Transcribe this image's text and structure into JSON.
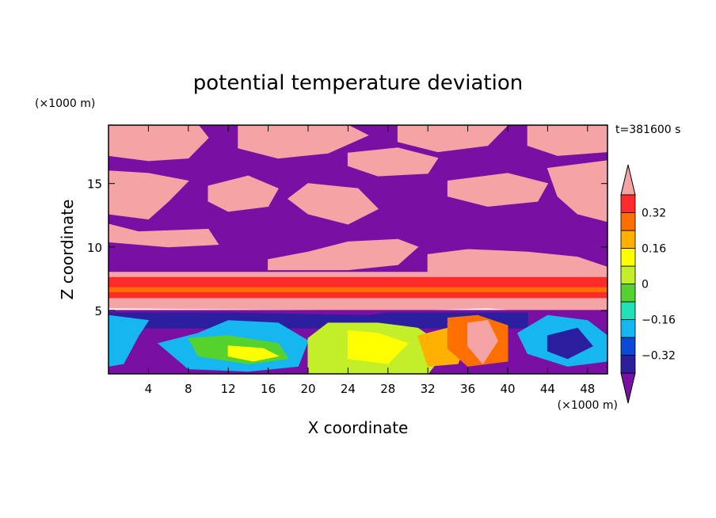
{
  "chart_data": {
    "type": "heatmap",
    "title": "potential temperature deviation",
    "xlabel": "X coordinate",
    "ylabel": "Z coordinate",
    "x_unit": "(×1000 m)",
    "y_unit": "(×1000 m)",
    "time_label": "t=381600 s",
    "xlim": [
      0,
      50
    ],
    "ylim": [
      0,
      19.6
    ],
    "x_ticks": [
      4,
      8,
      12,
      16,
      20,
      24,
      28,
      32,
      36,
      40,
      44,
      48
    ],
    "y_ticks": [
      5,
      10,
      15
    ],
    "colorbar": {
      "levels": [
        -0.4,
        -0.32,
        -0.24,
        -0.16,
        -0.08,
        0,
        0.08,
        0.16,
        0.24,
        0.32,
        0.4
      ],
      "labels": [
        -0.32,
        -0.16,
        0,
        0.16,
        0.32
      ],
      "colors": [
        "#7a0fa3",
        "#2b1f9f",
        "#0a4ad6",
        "#16b7f0",
        "#22e0b8",
        "#55d22e",
        "#c2ee2a",
        "#ffff00",
        "#ffb000",
        "#ff6f00",
        "#ff2a2a",
        "#f4a4a4"
      ],
      "extend": "both"
    },
    "regions": [
      {
        "value": -0.45,
        "points": [
          [
            0,
            19.6
          ],
          [
            50,
            19.6
          ],
          [
            50,
            8.0
          ],
          [
            0,
            8.0
          ]
        ]
      },
      {
        "value": 0.45,
        "points": [
          [
            0,
            19.6
          ],
          [
            9,
            19.6
          ],
          [
            10,
            18.6
          ],
          [
            8,
            17.0
          ],
          [
            4,
            16.8
          ],
          [
            0,
            17.2
          ]
        ]
      },
      {
        "value": 0.45,
        "points": [
          [
            13,
            19.6
          ],
          [
            24,
            19.6
          ],
          [
            26,
            18.8
          ],
          [
            22,
            17.4
          ],
          [
            17,
            17.0
          ],
          [
            13,
            17.8
          ]
        ]
      },
      {
        "value": 0.45,
        "points": [
          [
            29,
            19.6
          ],
          [
            40,
            19.6
          ],
          [
            38,
            18.0
          ],
          [
            33,
            17.5
          ],
          [
            29,
            18.3
          ]
        ]
      },
      {
        "value": 0.45,
        "points": [
          [
            42,
            19.6
          ],
          [
            50,
            19.6
          ],
          [
            50,
            17.5
          ],
          [
            45,
            17.2
          ],
          [
            42,
            18.0
          ]
        ]
      },
      {
        "value": 0.45,
        "points": [
          [
            0,
            16.0
          ],
          [
            4,
            15.8
          ],
          [
            8,
            15.2
          ],
          [
            6,
            13.6
          ],
          [
            4,
            12.2
          ],
          [
            0,
            12.6
          ]
        ]
      },
      {
        "value": 0.45,
        "points": [
          [
            10,
            14.8
          ],
          [
            14,
            15.6
          ],
          [
            17,
            14.6
          ],
          [
            16,
            13.2
          ],
          [
            12,
            12.8
          ],
          [
            10,
            13.6
          ]
        ]
      },
      {
        "value": 0.45,
        "points": [
          [
            24,
            17.4
          ],
          [
            29,
            17.8
          ],
          [
            33,
            17.0
          ],
          [
            32,
            15.8
          ],
          [
            27,
            15.6
          ],
          [
            24,
            16.4
          ]
        ]
      },
      {
        "value": 0.45,
        "points": [
          [
            20,
            15.0
          ],
          [
            25,
            14.6
          ],
          [
            27,
            13.0
          ],
          [
            24,
            11.8
          ],
          [
            20,
            12.6
          ],
          [
            18,
            13.8
          ]
        ]
      },
      {
        "value": 0.45,
        "points": [
          [
            34,
            15.2
          ],
          [
            40,
            15.8
          ],
          [
            44,
            15.0
          ],
          [
            43,
            13.6
          ],
          [
            38,
            13.2
          ],
          [
            34,
            14.0
          ]
        ]
      },
      {
        "value": 0.45,
        "points": [
          [
            44,
            16.2
          ],
          [
            50,
            16.8
          ],
          [
            50,
            12.0
          ],
          [
            47,
            12.6
          ],
          [
            45,
            14.0
          ]
        ]
      },
      {
        "value": 0.45,
        "points": [
          [
            0,
            11.8
          ],
          [
            3,
            11.2
          ],
          [
            10,
            11.4
          ],
          [
            11,
            10.2
          ],
          [
            6,
            10.0
          ],
          [
            0,
            10.4
          ]
        ]
      },
      {
        "value": 0.45,
        "points": [
          [
            16,
            9.0
          ],
          [
            20,
            9.6
          ],
          [
            24,
            10.4
          ],
          [
            29,
            10.6
          ],
          [
            31,
            10.0
          ],
          [
            29,
            8.6
          ],
          [
            24,
            8.2
          ],
          [
            16,
            8.2
          ]
        ]
      },
      {
        "value": 0.45,
        "points": [
          [
            32,
            9.4
          ],
          [
            36,
            9.8
          ],
          [
            42,
            9.6
          ],
          [
            47,
            9.2
          ],
          [
            50,
            8.4
          ],
          [
            50,
            7.6
          ],
          [
            32,
            7.6
          ]
        ]
      },
      {
        "value": 0.45,
        "points": [
          [
            0,
            8.0
          ],
          [
            50,
            8.0
          ],
          [
            50,
            5.0
          ],
          [
            44,
            4.8
          ],
          [
            38,
            5.2
          ],
          [
            30,
            5.0
          ],
          [
            0,
            5.2
          ]
        ]
      },
      {
        "value": 0.36,
        "points": [
          [
            0,
            7.6
          ],
          [
            50,
            7.6
          ],
          [
            50,
            6.8
          ],
          [
            0,
            6.8
          ]
        ]
      },
      {
        "value": 0.28,
        "points": [
          [
            0,
            6.8
          ],
          [
            50,
            6.8
          ],
          [
            50,
            6.4
          ],
          [
            0,
            6.4
          ]
        ]
      },
      {
        "value": 0.36,
        "points": [
          [
            0,
            6.4
          ],
          [
            50,
            6.4
          ],
          [
            50,
            6.0
          ],
          [
            0,
            6.0
          ]
        ]
      },
      {
        "value": -0.45,
        "points": [
          [
            0,
            5.0
          ],
          [
            50,
            5.0
          ],
          [
            50,
            0
          ],
          [
            0,
            0
          ]
        ]
      },
      {
        "value": -0.36,
        "points": [
          [
            0,
            4.8
          ],
          [
            12,
            4.8
          ],
          [
            26,
            4.6
          ],
          [
            28,
            4.8
          ],
          [
            42,
            4.8
          ],
          [
            42,
            3.6
          ],
          [
            26,
            3.6
          ],
          [
            0,
            3.6
          ]
        ]
      },
      {
        "value": -0.2,
        "points": [
          [
            0,
            4.6
          ],
          [
            4,
            4.2
          ],
          [
            3,
            3.0
          ],
          [
            1.5,
            0.8
          ],
          [
            0,
            0.6
          ]
        ]
      },
      {
        "value": -0.2,
        "points": [
          [
            5,
            2.4
          ],
          [
            9,
            3.2
          ],
          [
            12,
            4.2
          ],
          [
            17,
            4.0
          ],
          [
            20,
            2.6
          ],
          [
            19,
            0.6
          ],
          [
            14,
            0.2
          ],
          [
            8,
            0.4
          ]
        ]
      },
      {
        "value": -0.04,
        "points": [
          [
            8,
            2.8
          ],
          [
            12,
            3.0
          ],
          [
            17,
            2.4
          ],
          [
            18,
            1.2
          ],
          [
            14,
            0.8
          ],
          [
            9,
            1.4
          ]
        ]
      },
      {
        "value": 0.12,
        "points": [
          [
            12,
            2.2
          ],
          [
            15.5,
            2.0
          ],
          [
            17,
            1.4
          ],
          [
            14.5,
            1.0
          ],
          [
            12,
            1.4
          ]
        ]
      },
      {
        "value": 0.04,
        "points": [
          [
            20,
            2.8
          ],
          [
            22,
            4.0
          ],
          [
            27,
            4.0
          ],
          [
            31,
            3.6
          ],
          [
            34,
            2.0
          ],
          [
            32,
            0
          ],
          [
            20,
            0
          ]
        ]
      },
      {
        "value": 0.12,
        "points": [
          [
            24,
            3.4
          ],
          [
            27,
            3.2
          ],
          [
            30,
            2.4
          ],
          [
            28,
            0.8
          ],
          [
            24,
            1.2
          ]
        ]
      },
      {
        "value": 0.2,
        "points": [
          [
            31,
            3.0
          ],
          [
            34,
            3.6
          ],
          [
            36,
            2.6
          ],
          [
            35,
            0.8
          ],
          [
            32,
            0.6
          ]
        ]
      },
      {
        "value": 0.28,
        "points": [
          [
            34,
            4.4
          ],
          [
            37,
            4.6
          ],
          [
            40,
            3.8
          ],
          [
            40,
            1.0
          ],
          [
            36,
            0.6
          ],
          [
            34,
            2.0
          ]
        ]
      },
      {
        "value": 0.45,
        "points": [
          [
            36,
            4.0
          ],
          [
            38,
            4.2
          ],
          [
            39,
            2.6
          ],
          [
            37.5,
            0.8
          ],
          [
            36,
            2.2
          ]
        ]
      },
      {
        "value": -0.2,
        "points": [
          [
            41,
            3.2
          ],
          [
            44,
            4.6
          ],
          [
            48,
            4.2
          ],
          [
            50,
            3.0
          ],
          [
            50,
            1.0
          ],
          [
            46,
            0.6
          ],
          [
            42,
            1.6
          ]
        ]
      },
      {
        "value": -0.36,
        "points": [
          [
            44,
            3.0
          ],
          [
            47,
            3.6
          ],
          [
            48.5,
            2.2
          ],
          [
            46,
            1.2
          ],
          [
            44,
            1.8
          ]
        ]
      }
    ]
  }
}
